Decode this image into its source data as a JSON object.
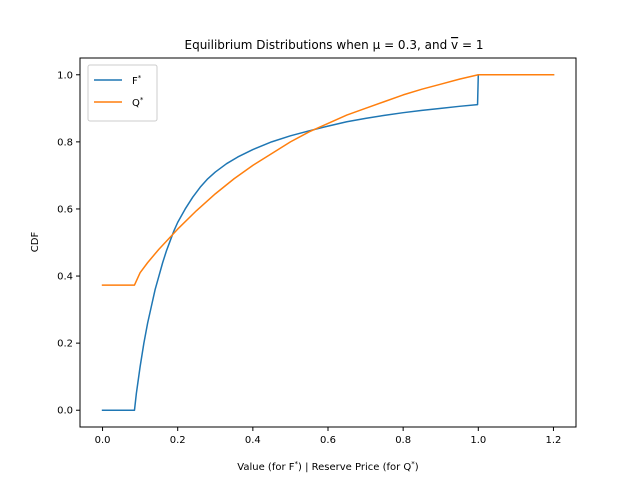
{
  "chart_data": {
    "type": "line",
    "title_parts": {
      "a": "Equilibrium Distributions when ",
      "mu_symbol": "μ",
      "mu_value": " = 0.3, and  ",
      "v_symbol": "v",
      "v_value": " = 1"
    },
    "xlabel_parts": {
      "a": "Value (for F",
      "a_sup": "*",
      "b": ") | Reserve Price (for Q",
      "b_sup": "*",
      "c": ")"
    },
    "ylabel": "CDF",
    "xlim": [
      -0.06,
      1.26
    ],
    "ylim": [
      -0.05,
      1.05
    ],
    "x_ticks": [
      0.0,
      0.2,
      0.4,
      0.6,
      0.8,
      1.0,
      1.2
    ],
    "x_tick_labels": [
      "0.0",
      "0.2",
      "0.4",
      "0.6",
      "0.8",
      "1.0",
      "1.2"
    ],
    "y_ticks": [
      0.0,
      0.2,
      0.4,
      0.6,
      0.8,
      1.0
    ],
    "y_tick_labels": [
      "0.0",
      "0.2",
      "0.4",
      "0.6",
      "0.8",
      "1.0"
    ],
    "grid": false,
    "legend_position": "top-left",
    "series": [
      {
        "name": "F",
        "name_sup": "*",
        "color": "#1f77b4",
        "points": [
          [
            0.0,
            0.0
          ],
          [
            0.085,
            0.0
          ],
          [
            0.09,
            0.05
          ],
          [
            0.1,
            0.13
          ],
          [
            0.11,
            0.2
          ],
          [
            0.12,
            0.26
          ],
          [
            0.13,
            0.31
          ],
          [
            0.14,
            0.36
          ],
          [
            0.15,
            0.4
          ],
          [
            0.16,
            0.44
          ],
          [
            0.17,
            0.475
          ],
          [
            0.18,
            0.505
          ],
          [
            0.19,
            0.535
          ],
          [
            0.2,
            0.56
          ],
          [
            0.22,
            0.6
          ],
          [
            0.24,
            0.635
          ],
          [
            0.26,
            0.665
          ],
          [
            0.28,
            0.69
          ],
          [
            0.3,
            0.71
          ],
          [
            0.33,
            0.735
          ],
          [
            0.36,
            0.755
          ],
          [
            0.4,
            0.777
          ],
          [
            0.45,
            0.8
          ],
          [
            0.5,
            0.818
          ],
          [
            0.55,
            0.833
          ],
          [
            0.6,
            0.847
          ],
          [
            0.65,
            0.86
          ],
          [
            0.7,
            0.87
          ],
          [
            0.75,
            0.879
          ],
          [
            0.8,
            0.887
          ],
          [
            0.85,
            0.894
          ],
          [
            0.9,
            0.9
          ],
          [
            0.95,
            0.906
          ],
          [
            0.998,
            0.911
          ],
          [
            1.0,
            1.0
          ],
          [
            1.2,
            1.0
          ]
        ]
      },
      {
        "name": "Q",
        "name_sup": "*",
        "color": "#ff7f0e",
        "points": [
          [
            0.0,
            0.373
          ],
          [
            0.085,
            0.373
          ],
          [
            0.1,
            0.41
          ],
          [
            0.12,
            0.44
          ],
          [
            0.15,
            0.48
          ],
          [
            0.2,
            0.54
          ],
          [
            0.25,
            0.595
          ],
          [
            0.3,
            0.645
          ],
          [
            0.35,
            0.69
          ],
          [
            0.4,
            0.73
          ],
          [
            0.45,
            0.765
          ],
          [
            0.5,
            0.8
          ],
          [
            0.55,
            0.83
          ],
          [
            0.6,
            0.855
          ],
          [
            0.65,
            0.88
          ],
          [
            0.7,
            0.9
          ],
          [
            0.75,
            0.92
          ],
          [
            0.8,
            0.94
          ],
          [
            0.85,
            0.957
          ],
          [
            0.9,
            0.972
          ],
          [
            0.95,
            0.987
          ],
          [
            1.0,
            1.0
          ],
          [
            1.2,
            1.0
          ]
        ]
      }
    ]
  }
}
